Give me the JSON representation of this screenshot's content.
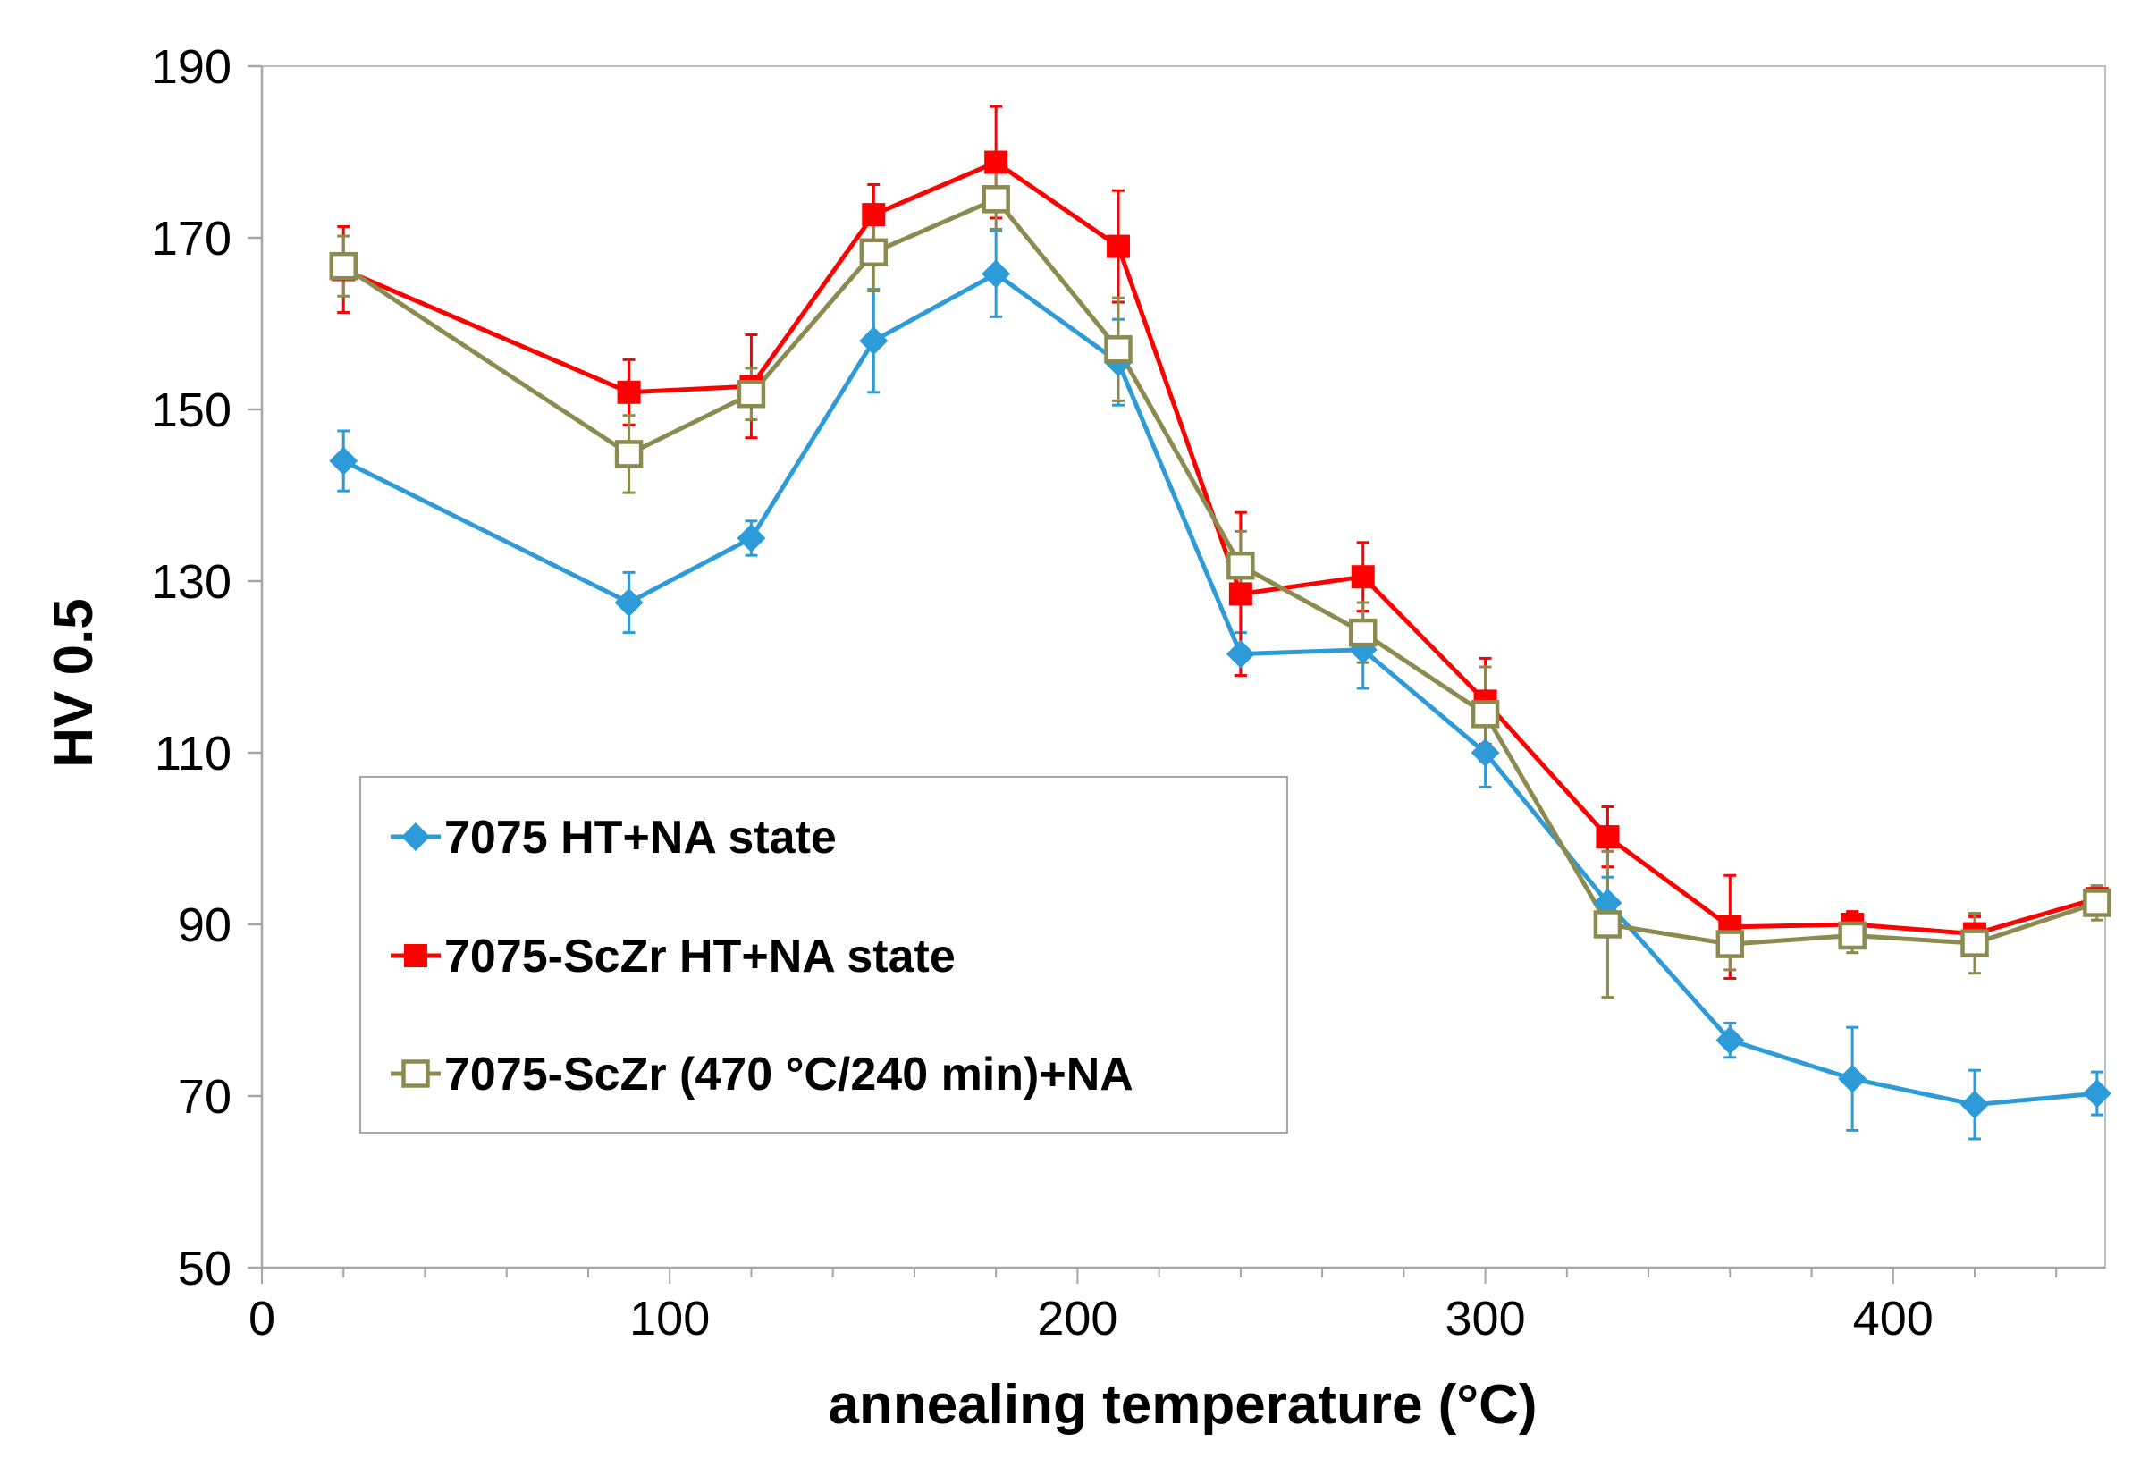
{
  "chart_data": {
    "type": "line",
    "title": "",
    "xlabel": "annealing temperature (°C)",
    "ylabel": "HV 0.5",
    "xlim": [
      0,
      452
    ],
    "ylim": [
      50,
      190
    ],
    "xticks": [
      0,
      100,
      200,
      300,
      400
    ],
    "yticks": [
      50,
      70,
      90,
      110,
      130,
      150,
      170,
      190
    ],
    "grid": false,
    "legend_position": "lower-left",
    "series": [
      {
        "name": "7075 HT+NA state",
        "color": "#2E9BD9",
        "marker": "diamond",
        "x": [
          20,
          90,
          120,
          150,
          180,
          210,
          240,
          270,
          300,
          330,
          360,
          390,
          420,
          450
        ],
        "y": [
          144,
          127.5,
          135,
          158,
          165.8,
          155.5,
          121.5,
          122,
          110,
          92.5,
          76.5,
          72,
          69,
          70.3
        ],
        "err": [
          3.5,
          3.5,
          2,
          6,
          5,
          5,
          2.5,
          4.5,
          4,
          3,
          2,
          6,
          4,
          2.5
        ]
      },
      {
        "name": "7075-ScZr HT+NA state",
        "color": "#FF0000",
        "marker": "square",
        "x": [
          20,
          90,
          120,
          150,
          180,
          210,
          240,
          270,
          300,
          330,
          360,
          390,
          420,
          450
        ],
        "y": [
          166.3,
          152,
          152.7,
          172.7,
          178.8,
          169,
          128.5,
          130.5,
          116,
          100.2,
          89.7,
          90,
          88.9,
          93
        ],
        "err": [
          5,
          3.8,
          6,
          3.5,
          6.5,
          6.5,
          9.5,
          4,
          5,
          3.5,
          6,
          1.5,
          2,
          1.5
        ]
      },
      {
        "name": "7075-ScZr (470 °C/240 min)+NA",
        "color": "#8B8B4F",
        "marker": "open-square",
        "x": [
          20,
          90,
          120,
          150,
          180,
          210,
          240,
          270,
          300,
          330,
          360,
          390,
          420,
          450
        ],
        "y": [
          166.7,
          144.8,
          151.8,
          168.3,
          174.5,
          157,
          131.8,
          124,
          114.5,
          90,
          87.7,
          88.7,
          87.8,
          92.5
        ],
        "err": [
          3.5,
          4.5,
          3,
          4.5,
          3.5,
          6,
          4,
          3.5,
          5.5,
          8.5,
          3,
          2,
          3.5,
          2
        ]
      }
    ]
  }
}
